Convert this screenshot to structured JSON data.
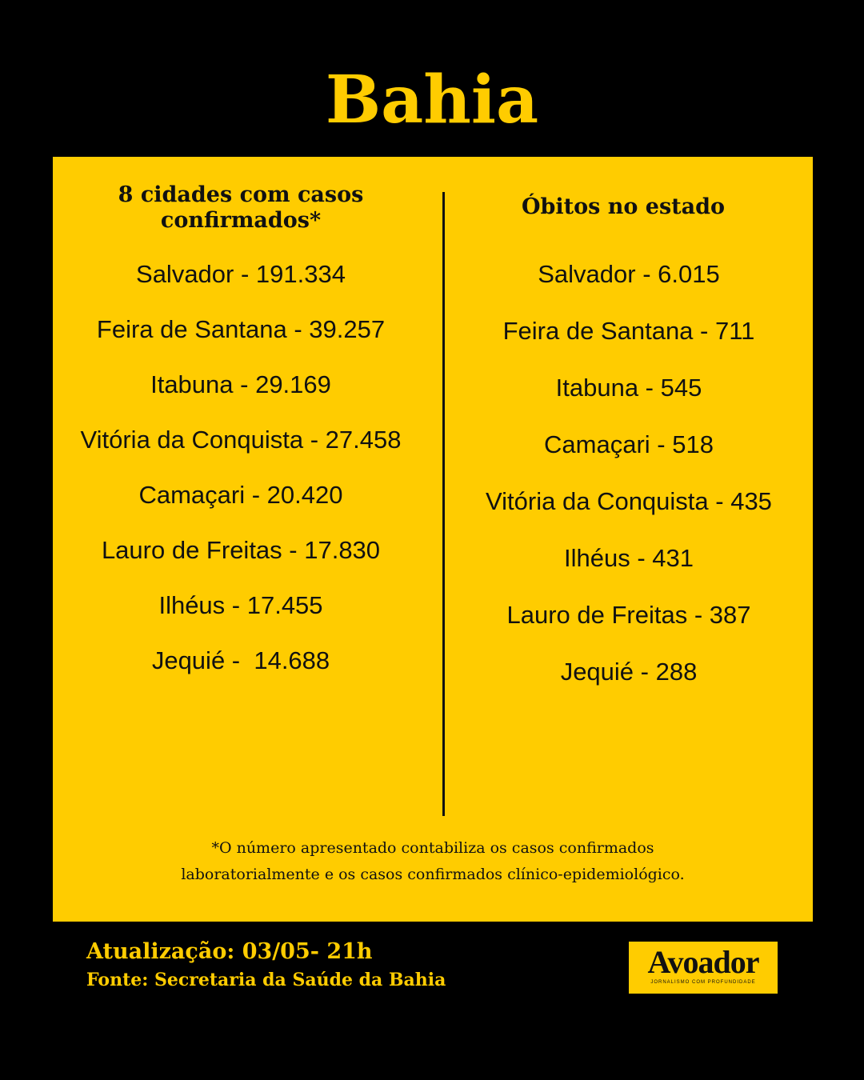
{
  "header": {
    "title": "Bahia"
  },
  "left_column": {
    "heading_lines": [
      "8 cidades com casos",
      "confirmados*"
    ],
    "items": [
      "Salvador - 191.334",
      "Feira de Santana - 39.257",
      "Itabuna - 29.169",
      "Vitória da Conquista - 27.458",
      "Camaçari - 20.420",
      "Lauro de Freitas - 17.830",
      "Ilhéus - 17.455",
      "Jequié -  14.688"
    ]
  },
  "right_column": {
    "heading": "Óbitos no estado",
    "items": [
      "Salvador - 6.015",
      "Feira de Santana - 711",
      "Itabuna - 545",
      "Camaçari - 518",
      "Vitória da Conquista - 435",
      "Ilhéus - 431",
      "Lauro de Freitas - 387",
      "Jequié - 288"
    ]
  },
  "footnote_lines": [
    "*O número apresentado contabiliza os casos confirmados",
    "laboratorialmente e os casos confirmados clínico-epidemiológico."
  ],
  "footer": {
    "update": "Atualização: 03/05- 21h",
    "source": "Fonte: Secretaria da Saúde da Bahia"
  },
  "logo": {
    "name": "Avoador",
    "tagline": "JORNALISMO COM PROFUNDIDADE"
  }
}
